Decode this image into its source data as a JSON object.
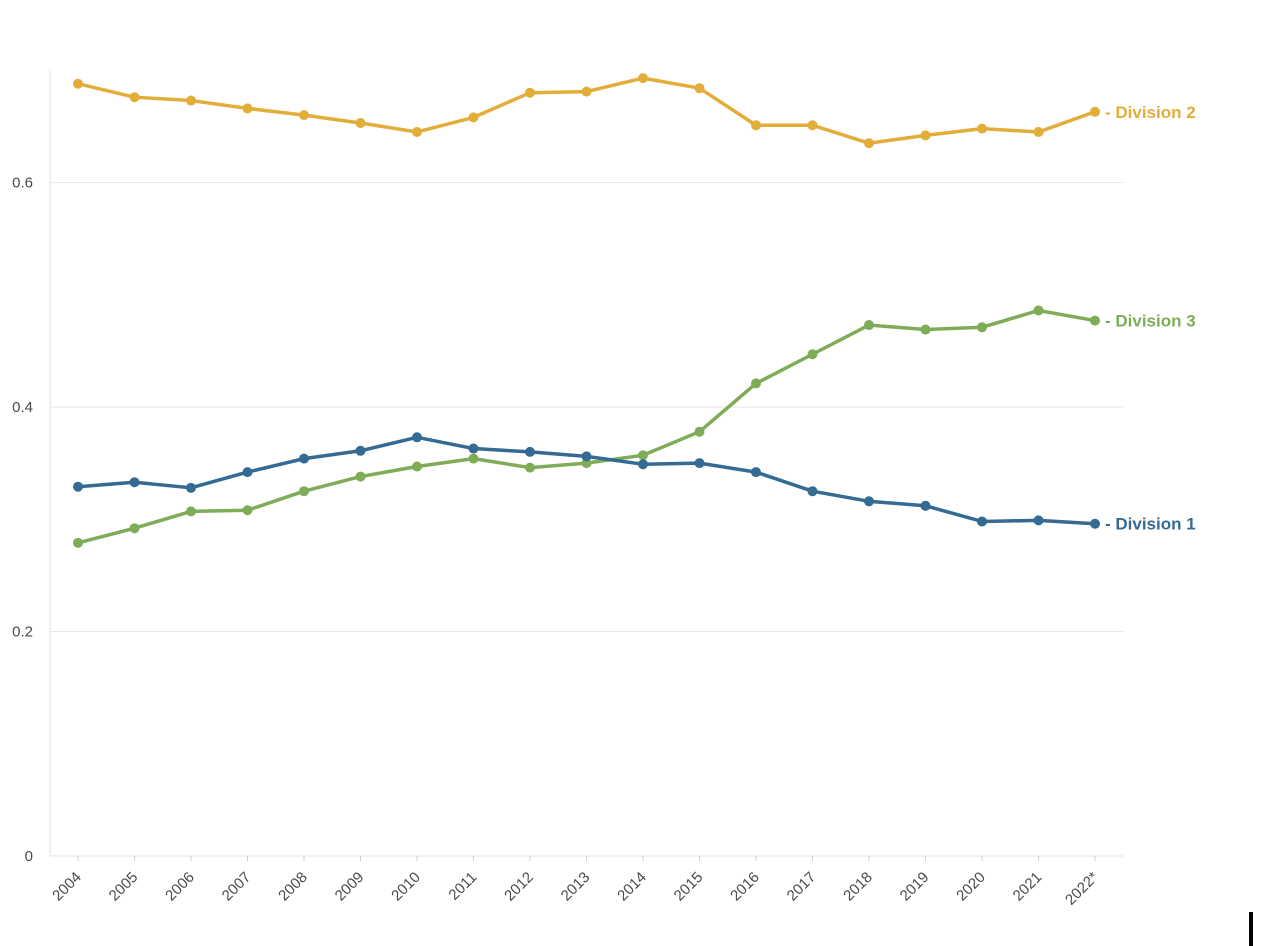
{
  "chart_data": {
    "type": "line",
    "title": "",
    "xlabel": "",
    "ylabel": "",
    "ylim": [
      0,
      0.7
    ],
    "yticks": [
      {
        "value": 0,
        "label": "0"
      },
      {
        "value": 0.2,
        "label": "0.2"
      },
      {
        "value": 0.4,
        "label": "0.4"
      },
      {
        "value": 0.6,
        "label": "0.6"
      }
    ],
    "grid": true,
    "categories": [
      "2004",
      "2005",
      "2006",
      "2007",
      "2008",
      "2009",
      "2010",
      "2011",
      "2012",
      "2013",
      "2014",
      "2015",
      "2016",
      "2017",
      "2018",
      "2019",
      "2020",
      "2021",
      "2022*"
    ],
    "series": [
      {
        "name": "Division 2",
        "color": "#e3ad3a",
        "values": [
          0.688,
          0.676,
          0.673,
          0.666,
          0.66,
          0.653,
          0.645,
          0.658,
          0.68,
          0.681,
          0.693,
          0.684,
          0.651,
          0.651,
          0.635,
          0.642,
          0.648,
          0.645,
          0.663
        ]
      },
      {
        "name": "Division 3",
        "color": "#7fac56",
        "values": [
          0.279,
          0.292,
          0.307,
          0.308,
          0.325,
          0.338,
          0.347,
          0.354,
          0.346,
          0.35,
          0.357,
          0.378,
          0.421,
          0.447,
          0.473,
          0.469,
          0.471,
          0.486,
          0.477
        ]
      },
      {
        "name": "Division 1",
        "color": "#356a92",
        "values": [
          0.329,
          0.333,
          0.328,
          0.342,
          0.354,
          0.361,
          0.373,
          0.363,
          0.36,
          0.356,
          0.349,
          0.35,
          0.342,
          0.325,
          0.316,
          0.312,
          0.298,
          0.299,
          0.296
        ]
      }
    ],
    "legend": "inline-right"
  }
}
